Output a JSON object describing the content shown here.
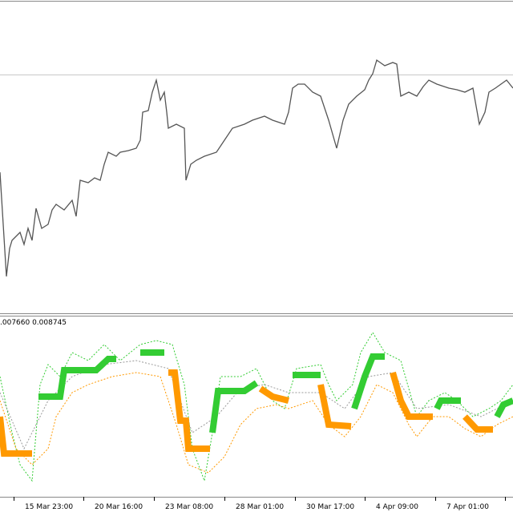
{
  "indicator": {
    "label": ".007660 0.008745"
  },
  "time_axis": {
    "labels": [
      "15 Mar 23:00",
      "20 Mar 16:00",
      "23 Mar 08:00",
      "28 Mar 01:00",
      "30 Mar 17:00",
      "4 Apr 09:00",
      "7 Apr 01:00",
      "1"
    ]
  }
}
